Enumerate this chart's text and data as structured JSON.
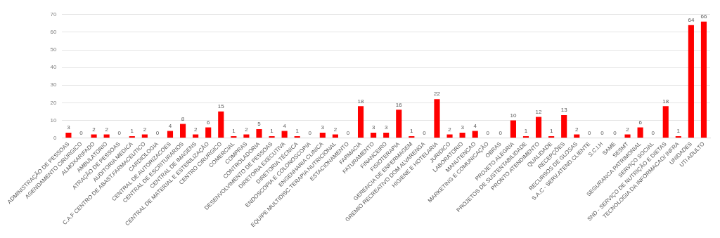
{
  "chart_data": {
    "type": "bar",
    "categories": [
      "ADMINISTRAÇÃO DE PESSOAS",
      "AGENDAMENTO CIRÚRGICO",
      "ALMOXARIFADO",
      "AMBULATORIO",
      "ATRAÇÃO DE PESSOAS",
      "AUDITORIA MEDICA",
      "C.A.F CENTRO DE ABAST.FARMACEUTICO",
      "CARDIOLOGIA",
      "CENTRAL DE AUTORIZACOES",
      "CENTRAL DE ESCRITURARIOS",
      "CENTRAL DE IMAGENS",
      "CENTRAL DE MATERIAL E ESTERILIZAÇÃO",
      "CENTRO CIRURGICO",
      "COMERCIAL",
      "COMPRAS",
      "CONTROLADORIA",
      "DESENVOLVIMENTO DE PESSOAS",
      "DIRETORIA EXECUTIVA",
      "DIRETORIA TÉCNICA",
      "ENDOSCOPIA E COLONOSCOPIA",
      "ENGENHARIA CLINICA",
      "EQUIPE MULTIDISC.TERAPIA NUTRICIONAL",
      "ESTACIONAMENTO",
      "FARMACIA",
      "FATURAMENTO",
      "FINANCEIRO",
      "FISIOTERAPIA",
      "GERENCIA DE ENFERMAGEM",
      "GREMIO RECREATIVO DOM ALVARENGA",
      "HIGIENE E HOTELARIA",
      "JURIDICO",
      "LABORATORIO",
      "MANUTENCAO",
      "MARKETING E COMUNICAÇÃO",
      "OBRAS",
      "PROJETO ALEGRIA",
      "PROJETOS DE SUSTENTABILIDADE",
      "PRONTO ATENDIMENTO",
      "QUALIDADE",
      "RECEPÇÕES",
      "RECURSOS DE GLOSAS",
      "S.A.C - SERV.ATEND.CLIENTE",
      "S.C.I.H",
      "SAME",
      "SESMT",
      "SEGURANCA PATRIMONIAL",
      "SERVIÇO SOCIAL",
      "SND - SERVIÇO DE NUTRIÇÃO E DIETAS",
      "TECNOLOGIA DA INFORMACAO/ INFRA",
      "UNIDADES",
      "UTI ADULTO"
    ],
    "values": [
      3,
      0,
      2,
      2,
      0,
      1,
      2,
      0,
      4,
      8,
      2,
      6,
      15,
      1,
      2,
      5,
      1,
      4,
      1,
      0,
      3,
      2,
      0,
      18,
      3,
      3,
      16,
      1,
      0,
      22,
      2,
      3,
      4,
      0,
      0,
      10,
      1,
      12,
      1,
      13,
      2,
      0,
      0,
      0,
      2,
      6,
      0,
      18,
      1,
      64,
      66
    ],
    "color": "#ff0000",
    "ylim": [
      0,
      70
    ],
    "yticks": [
      0,
      10,
      20,
      30,
      40,
      50,
      60,
      70
    ],
    "grid": "y",
    "data_labels": true
  }
}
